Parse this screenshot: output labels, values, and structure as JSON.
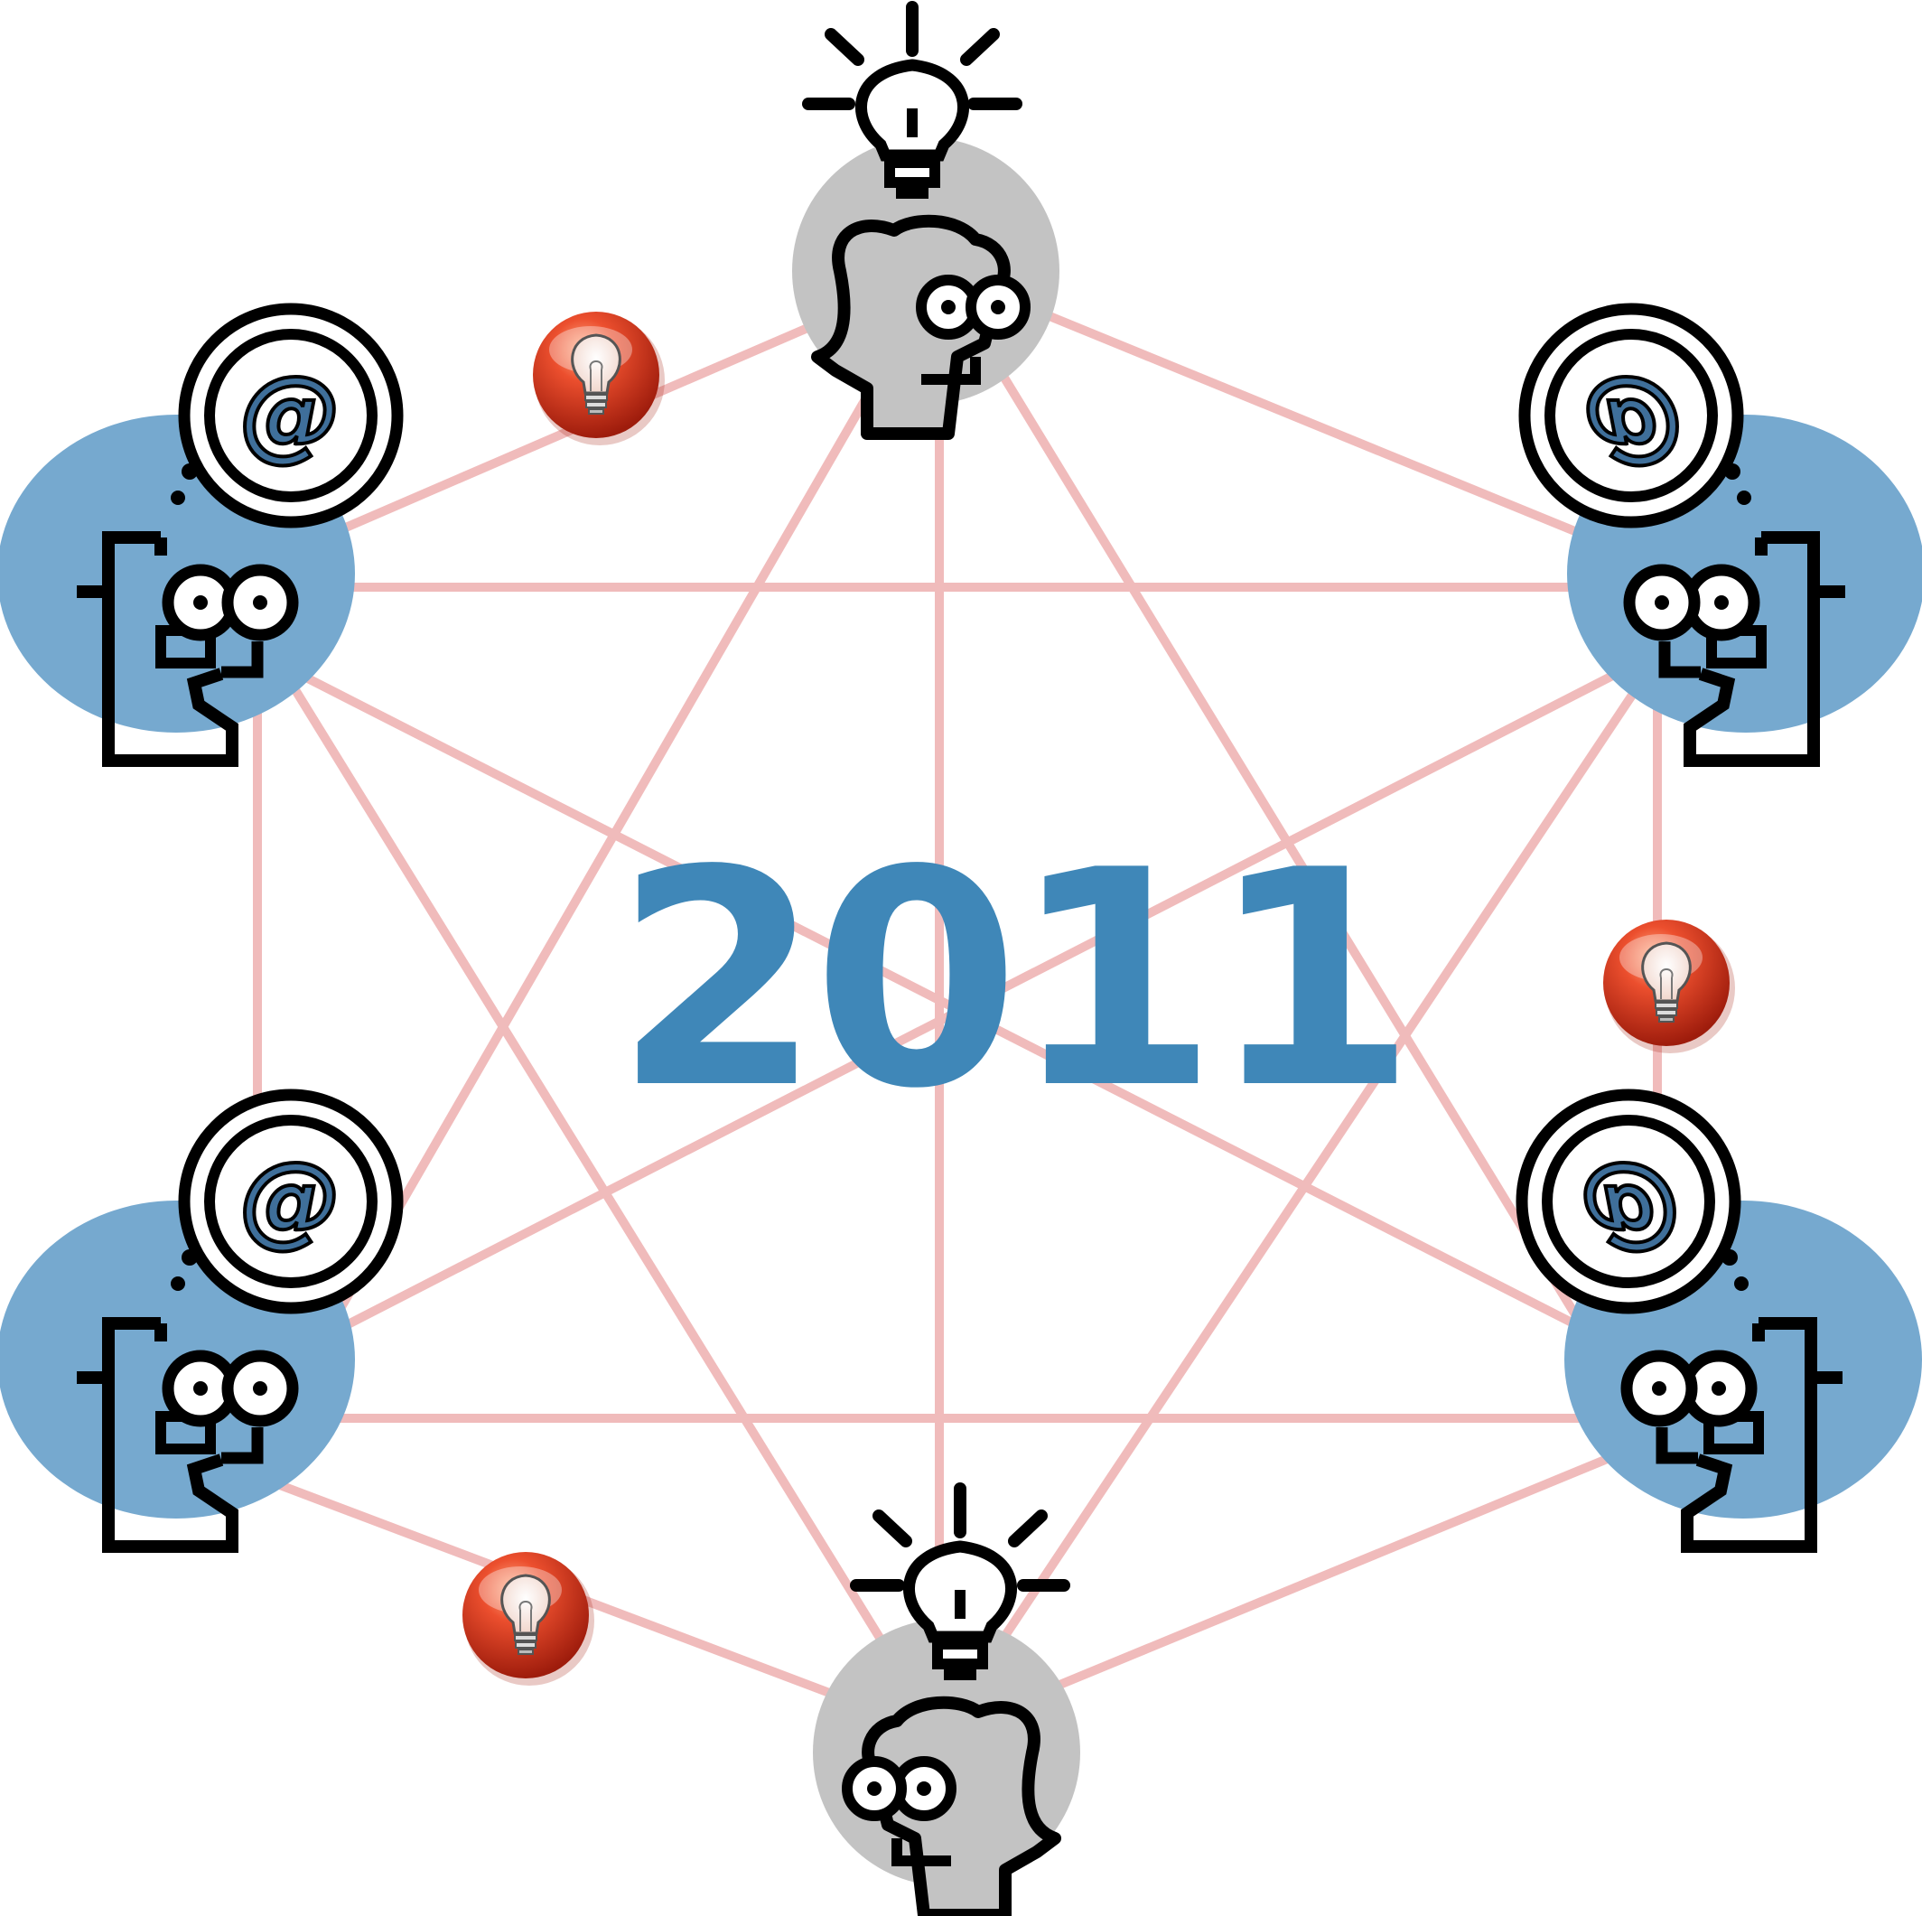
{
  "year": "2011",
  "colors": {
    "accent": "#3f87b8",
    "node_blue": "#76a9cf",
    "node_gray": "#c3c3c3",
    "connector": "#efb4b4",
    "bulb_badge": "#d63a25"
  },
  "nodes": [
    {
      "id": "top",
      "icon": "idea-person-icon"
    },
    {
      "id": "upper-left",
      "icon": "email-person-icon"
    },
    {
      "id": "upper-right",
      "icon": "email-person-icon"
    },
    {
      "id": "lower-left",
      "icon": "email-person-icon"
    },
    {
      "id": "lower-right",
      "icon": "email-person-icon"
    },
    {
      "id": "bottom",
      "icon": "idea-person-icon"
    }
  ],
  "badges": [
    {
      "id": "badge-upper-left",
      "icon": "lightbulb-badge-icon"
    },
    {
      "id": "badge-right",
      "icon": "lightbulb-badge-icon"
    },
    {
      "id": "badge-lower-left",
      "icon": "lightbulb-badge-icon"
    }
  ]
}
